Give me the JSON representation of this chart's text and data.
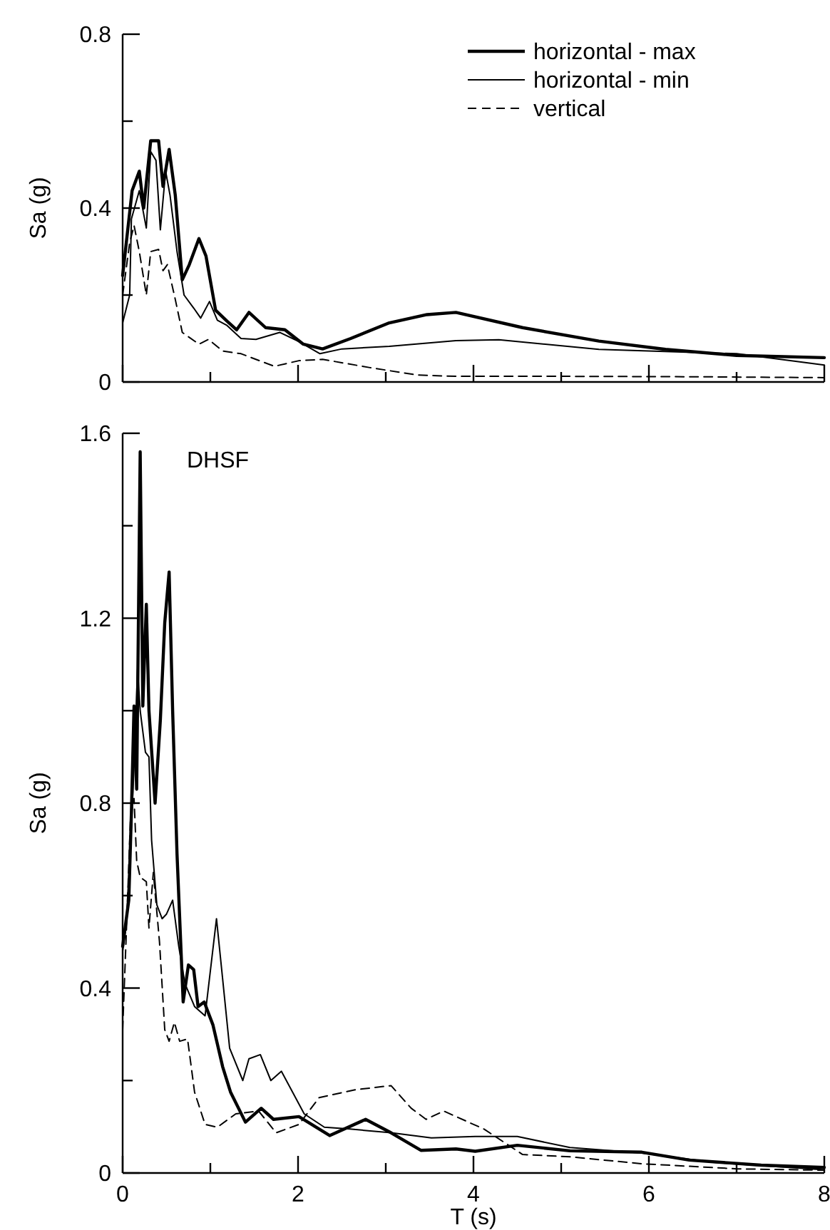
{
  "chart_data": [
    {
      "type": "line",
      "ylabel": "Sa (g)",
      "xlim": [
        0,
        8
      ],
      "ylim": [
        0,
        0.8
      ],
      "xticks": [
        0,
        {
          "value": 1,
          "label": null
        },
        2,
        {
          "value": 3,
          "label": null
        },
        4,
        {
          "value": 5,
          "label": null
        },
        6,
        {
          "value": 7,
          "label": null
        },
        8
      ],
      "yticks": [
        0,
        {
          "value": 0.2,
          "label": null
        },
        0.4,
        {
          "value": 0.6,
          "label": null
        },
        0.8
      ],
      "tick_labels": "y",
      "legend": "top right",
      "grid": false,
      "series": [
        {
          "name": "horizontal - max",
          "color": "#000000",
          "line_style": "solid",
          "x": [
            0,
            0.108,
            0.19,
            0.24,
            0.32,
            0.41,
            0.46,
            0.53,
            0.6,
            0.68,
            0.76,
            0.87,
            0.95,
            1.06,
            1.19,
            1.3,
            1.44,
            1.63,
            1.85,
            2.06,
            2.28,
            2.6,
            3.04,
            3.47,
            3.8,
            4.56,
            5.43,
            6.19,
            7.0,
            8.0
          ],
          "values": [
            0.245,
            0.44,
            0.485,
            0.4,
            0.555,
            0.555,
            0.45,
            0.535,
            0.43,
            0.235,
            0.27,
            0.33,
            0.29,
            0.165,
            0.14,
            0.12,
            0.16,
            0.125,
            0.12,
            0.087,
            0.076,
            0.1,
            0.136,
            0.155,
            0.16,
            0.125,
            0.094,
            0.075,
            0.061,
            0.056
          ]
        },
        {
          "name": "horizontal - min",
          "color": "#000000",
          "line_style": "solid",
          "x": [
            0,
            0.08,
            0.1,
            0.19,
            0.27,
            0.32,
            0.38,
            0.43,
            0.49,
            0.54,
            0.62,
            0.7,
            0.81,
            0.89,
            0.99,
            1.08,
            1.19,
            1.35,
            1.52,
            1.79,
            2.01,
            2.25,
            2.5,
            3.04,
            3.8,
            4.29,
            5.43,
            7.0,
            8.0
          ],
          "values": [
            0.136,
            0.2,
            0.375,
            0.44,
            0.354,
            0.53,
            0.51,
            0.35,
            0.485,
            0.43,
            0.3,
            0.2,
            0.17,
            0.147,
            0.185,
            0.142,
            0.13,
            0.1,
            0.098,
            0.114,
            0.093,
            0.065,
            0.076,
            0.082,
            0.095,
            0.097,
            0.075,
            0.065,
            0.039
          ]
        },
        {
          "name": "vertical",
          "color": "#000000",
          "line_style": "dashed",
          "x": [
            0,
            0.08,
            0.13,
            0.19,
            0.27,
            0.32,
            0.41,
            0.46,
            0.51,
            0.6,
            0.68,
            0.87,
            0.98,
            1.14,
            1.35,
            1.73,
            2.01,
            2.28,
            2.82,
            3.36,
            3.8,
            5.0,
            6.5,
            8.0
          ],
          "values": [
            0.2,
            0.32,
            0.36,
            0.3,
            0.2,
            0.3,
            0.305,
            0.256,
            0.27,
            0.19,
            0.114,
            0.087,
            0.098,
            0.071,
            0.065,
            0.036,
            0.049,
            0.052,
            0.033,
            0.016,
            0.013,
            0.013,
            0.012,
            0.01
          ]
        }
      ]
    },
    {
      "type": "line",
      "ylabel": "Sa (g)",
      "xlabel": "T (s)",
      "annotations": [
        "DHSF"
      ],
      "xlim": [
        0,
        8
      ],
      "ylim": [
        0,
        1.6
      ],
      "xticks": [
        0,
        {
          "value": 1,
          "label": null
        },
        2,
        {
          "value": 3,
          "label": null
        },
        4,
        {
          "value": 5,
          "label": null
        },
        6,
        {
          "value": 7,
          "label": null
        },
        8
      ],
      "yticks": [
        0,
        {
          "value": 0.2,
          "label": null
        },
        0.4,
        {
          "value": 0.6,
          "label": null
        },
        0.8,
        {
          "value": 1.0,
          "label": null
        },
        1.2,
        {
          "value": 1.4,
          "label": null
        },
        1.6
      ],
      "grid": false,
      "legend": false,
      "series": [
        {
          "color": "#000000",
          "line_style": "solid",
          "x": [
            0,
            0.07,
            0.1,
            0.13,
            0.16,
            0.2,
            0.23,
            0.27,
            0.3,
            0.37,
            0.43,
            0.48,
            0.53,
            0.57,
            0.62,
            0.69,
            0.75,
            0.81,
            0.86,
            0.93,
            1.03,
            1.14,
            1.23,
            1.4,
            1.58,
            1.72,
            2.01,
            2.36,
            2.77,
            3.06,
            3.4,
            3.8,
            4.02,
            4.5,
            5.1,
            5.92,
            6.46,
            7.28,
            8.0
          ],
          "values": [
            0.49,
            0.59,
            0.78,
            1.01,
            0.83,
            1.56,
            1.01,
            1.23,
            1.0,
            0.8,
            0.98,
            1.19,
            1.3,
            1.0,
            0.69,
            0.37,
            0.45,
            0.44,
            0.36,
            0.37,
            0.32,
            0.23,
            0.175,
            0.11,
            0.14,
            0.116,
            0.122,
            0.081,
            0.116,
            0.087,
            0.049,
            0.052,
            0.047,
            0.06,
            0.048,
            0.045,
            0.028,
            0.017,
            0.012
          ]
        },
        {
          "color": "#000000",
          "line_style": "solid",
          "x": [
            0,
            0.04,
            0.09,
            0.13,
            0.17,
            0.2,
            0.26,
            0.3,
            0.33,
            0.39,
            0.45,
            0.5,
            0.57,
            0.64,
            0.71,
            0.82,
            0.94,
            1.07,
            1.14,
            1.22,
            1.37,
            1.44,
            1.57,
            1.69,
            1.81,
            2.07,
            2.3,
            2.59,
            3.06,
            3.52,
            4.02,
            4.5,
            5.1,
            5.92,
            6.73,
            8.0
          ],
          "values": [
            0.48,
            0.535,
            0.71,
            0.88,
            1.09,
            1.0,
            0.91,
            0.9,
            0.72,
            0.58,
            0.55,
            0.56,
            0.59,
            0.49,
            0.41,
            0.36,
            0.34,
            0.55,
            0.42,
            0.27,
            0.2,
            0.247,
            0.256,
            0.2,
            0.22,
            0.128,
            0.099,
            0.095,
            0.087,
            0.076,
            0.079,
            0.079,
            0.055,
            0.043,
            0.023,
            0.007
          ]
        },
        {
          "color": "#000000",
          "line_style": "dashed",
          "x": [
            0,
            0.04,
            0.09,
            0.13,
            0.16,
            0.2,
            0.27,
            0.3,
            0.35,
            0.42,
            0.48,
            0.53,
            0.59,
            0.65,
            0.74,
            0.82,
            0.94,
            1.08,
            1.29,
            1.55,
            1.75,
            2.01,
            2.24,
            2.65,
            3.06,
            3.29,
            3.46,
            3.66,
            4.12,
            4.56,
            5.1,
            5.92,
            7.0,
            8.0
          ],
          "values": [
            0.31,
            0.51,
            0.77,
            0.81,
            0.675,
            0.64,
            0.63,
            0.53,
            0.65,
            0.5,
            0.31,
            0.285,
            0.326,
            0.285,
            0.29,
            0.175,
            0.105,
            0.099,
            0.128,
            0.134,
            0.087,
            0.105,
            0.163,
            0.18,
            0.189,
            0.14,
            0.116,
            0.134,
            0.095,
            0.04,
            0.035,
            0.02,
            0.009,
            0.006
          ]
        }
      ]
    }
  ]
}
